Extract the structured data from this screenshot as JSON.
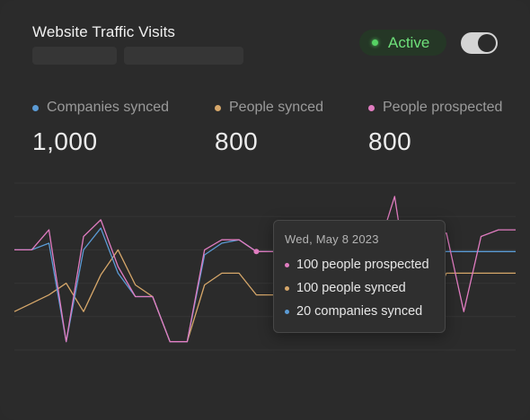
{
  "card": {
    "title": "Website Traffic Visits",
    "status": {
      "label": "Active",
      "color": "#56d364",
      "icon": "status-dot-icon"
    },
    "toggle": {
      "on": true
    }
  },
  "stats": [
    {
      "label": "Companies synced",
      "value": "1,000",
      "color": "#5b9bd5"
    },
    {
      "label": "People synced",
      "value": "800",
      "color": "#d6a76a"
    },
    {
      "label": "People prospected",
      "value": "800",
      "color": "#e07cc0"
    }
  ],
  "chart_data": {
    "type": "line",
    "grid": true,
    "ylim": [
      0,
      10
    ],
    "x": [
      0,
      1,
      2,
      3,
      4,
      5,
      6,
      7,
      8,
      9,
      10,
      11,
      12,
      13,
      14,
      15,
      16,
      17,
      18,
      19,
      20,
      21,
      22,
      23,
      24,
      25,
      26,
      27,
      28,
      29
    ],
    "series": [
      {
        "name": "People prospected",
        "color": "#e07cc0",
        "values": [
          6.0,
          6.0,
          7.2,
          0.5,
          6.8,
          7.8,
          5.0,
          3.2,
          3.2,
          0.5,
          0.5,
          6.0,
          6.6,
          6.6,
          5.9,
          5.9,
          5.9,
          5.9,
          5.9,
          5.9,
          5.9,
          5.9,
          9.2,
          2.5,
          7.0,
          7.0,
          2.3,
          6.8,
          7.2,
          7.2
        ]
      },
      {
        "name": "People synced",
        "color": "#d6a76a",
        "values": [
          2.3,
          2.8,
          3.3,
          4.0,
          2.3,
          4.5,
          6.0,
          3.9,
          3.2,
          0.5,
          0.5,
          3.9,
          4.6,
          4.6,
          3.3,
          3.3,
          3.3,
          3.3,
          3.3,
          3.3,
          3.3,
          3.3,
          3.3,
          3.3,
          2.3,
          4.6,
          4.6,
          4.6,
          4.6,
          4.6
        ]
      },
      {
        "name": "Companies synced",
        "color": "#5b9bd5",
        "values": [
          6.0,
          6.0,
          6.4,
          0.5,
          6.0,
          7.3,
          4.6,
          3.2,
          3.2,
          0.5,
          0.5,
          5.7,
          6.4,
          6.6,
          5.9,
          5.9,
          5.9,
          5.9,
          5.9,
          5.9,
          5.9,
          5.9,
          5.9,
          5.9,
          5.9,
          5.9,
          5.9,
          5.9,
          5.9,
          5.9
        ]
      }
    ],
    "highlight_index": 14
  },
  "tooltip": {
    "date": "Wed,  May 8 2023",
    "rows": [
      {
        "text": "100 people prospected",
        "color": "#e07cc0"
      },
      {
        "text": "100 people synced",
        "color": "#d6a76a"
      },
      {
        "text": "20 companies synced",
        "color": "#5b9bd5"
      }
    ]
  }
}
